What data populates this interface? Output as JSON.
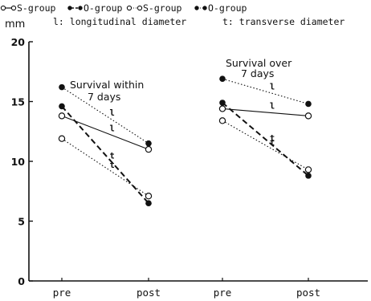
{
  "chart_data": {
    "type": "line",
    "ylabel": "mm",
    "ylim": [
      0,
      20
    ],
    "yticks": [
      "0",
      "5",
      "10",
      "15",
      "20"
    ],
    "xticks": [
      "pre",
      "post",
      "pre",
      "post"
    ],
    "legend": {
      "items": [
        {
          "label": "S-group",
          "marker": "open",
          "line": "solid"
        },
        {
          "label": "O-group",
          "marker": "filled",
          "line": "dashed"
        },
        {
          "label": "S-group",
          "marker": "open",
          "line": "dotted"
        },
        {
          "label": "O-group",
          "marker": "filled",
          "line": "dotted"
        }
      ],
      "notes": [
        "l: longitudinal diameter",
        "t: transverse diameter"
      ]
    },
    "panels": [
      {
        "title_line1": "Survival within",
        "title_line2": "7 days",
        "series": [
          {
            "group": "O-group",
            "diameter": "l",
            "marker": "filled",
            "line": "dotted",
            "values": [
              16.2,
              11.5
            ]
          },
          {
            "group": "S-group",
            "diameter": "l",
            "marker": "open",
            "line": "solid",
            "values": [
              13.8,
              11.0
            ]
          },
          {
            "group": "O-group",
            "diameter": "t",
            "marker": "filled",
            "line": "dashed",
            "values": [
              14.6,
              6.5
            ]
          },
          {
            "group": "S-group",
            "diameter": "t",
            "marker": "open",
            "line": "dotted",
            "values": [
              11.9,
              7.1
            ]
          }
        ]
      },
      {
        "title_line1": "Survival over",
        "title_line2": "7 days",
        "series": [
          {
            "group": "O-group",
            "diameter": "l",
            "marker": "filled",
            "line": "dotted",
            "values": [
              16.9,
              14.8
            ]
          },
          {
            "group": "S-group",
            "diameter": "l",
            "marker": "open",
            "line": "solid",
            "values": [
              14.4,
              13.8
            ]
          },
          {
            "group": "O-group",
            "diameter": "t",
            "marker": "filled",
            "line": "dashed",
            "values": [
              14.9,
              8.8
            ]
          },
          {
            "group": "S-group",
            "diameter": "t",
            "marker": "open",
            "line": "dotted",
            "values": [
              13.4,
              9.3
            ]
          }
        ]
      }
    ]
  }
}
